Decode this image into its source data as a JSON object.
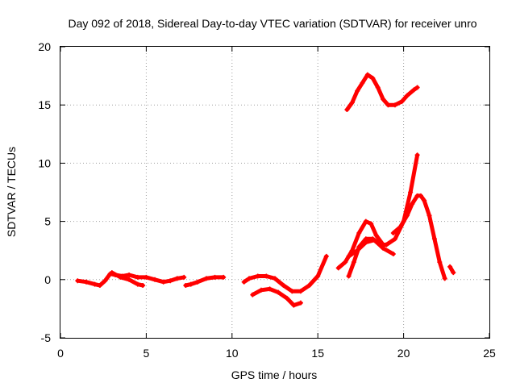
{
  "chart_data": {
    "type": "scatter",
    "title": "Day 092 of 2018, Sidereal Day-to-day VTEC variation (SDTVAR) for receiver unro",
    "xlabel": "GPS time / hours",
    "ylabel": "SDTVAR / TECUs",
    "xlim": [
      0,
      25
    ],
    "ylim": [
      -5,
      20
    ],
    "x_ticks": [
      0,
      5,
      10,
      15,
      20,
      25
    ],
    "y_ticks": [
      -5,
      0,
      5,
      10,
      15,
      20
    ],
    "grid": true,
    "color": "#ff0000",
    "series": [
      {
        "segments": [
          [
            [
              1.0,
              -0.1
            ],
            [
              1.5,
              -0.2
            ],
            [
              2.0,
              -0.4
            ],
            [
              2.3,
              -0.5
            ],
            [
              2.6,
              -0.1
            ],
            [
              2.9,
              0.5
            ],
            [
              3.2,
              0.4
            ],
            [
              3.6,
              0.3
            ],
            [
              4.0,
              0.4
            ],
            [
              4.5,
              0.2
            ],
            [
              5.0,
              0.2
            ],
            [
              5.5,
              0.0
            ],
            [
              6.0,
              -0.2
            ],
            [
              6.4,
              -0.1
            ],
            [
              6.8,
              0.1
            ],
            [
              7.2,
              0.2
            ]
          ],
          [
            [
              3.0,
              0.6
            ],
            [
              3.5,
              0.2
            ],
            [
              4.0,
              0.0
            ],
            [
              4.5,
              -0.4
            ],
            [
              4.8,
              -0.5
            ]
          ],
          [
            [
              7.3,
              -0.5
            ],
            [
              7.6,
              -0.4
            ],
            [
              8.0,
              -0.2
            ],
            [
              8.5,
              0.1
            ],
            [
              9.0,
              0.2
            ],
            [
              9.5,
              0.2
            ]
          ],
          [
            [
              10.7,
              -0.2
            ],
            [
              11.0,
              0.1
            ],
            [
              11.5,
              0.3
            ],
            [
              12.0,
              0.3
            ],
            [
              12.5,
              0.1
            ],
            [
              13.0,
              -0.5
            ],
            [
              13.5,
              -1.0
            ],
            [
              14.0,
              -1.0
            ],
            [
              14.5,
              -0.5
            ],
            [
              15.0,
              0.3
            ],
            [
              15.5,
              2.0
            ]
          ],
          [
            [
              11.2,
              -1.3
            ],
            [
              11.7,
              -0.9
            ],
            [
              12.2,
              -0.8
            ],
            [
              12.7,
              -1.1
            ],
            [
              13.2,
              -1.6
            ],
            [
              13.6,
              -2.2
            ],
            [
              14.0,
              -2.0
            ]
          ],
          [
            [
              16.2,
              1.0
            ],
            [
              16.6,
              1.5
            ],
            [
              17.0,
              2.5
            ],
            [
              17.4,
              4.0
            ],
            [
              17.8,
              5.0
            ],
            [
              18.1,
              4.8
            ],
            [
              18.4,
              3.8
            ],
            [
              18.8,
              3.0
            ]
          ],
          [
            [
              16.8,
              0.3
            ],
            [
              17.1,
              1.5
            ],
            [
              17.4,
              2.8
            ],
            [
              17.8,
              3.5
            ],
            [
              18.2,
              3.5
            ],
            [
              18.6,
              3.0
            ],
            [
              19.0,
              3.0
            ],
            [
              19.5,
              3.5
            ],
            [
              20.0,
              5.0
            ],
            [
              20.4,
              7.5
            ],
            [
              20.8,
              10.7
            ]
          ],
          [
            [
              16.8,
              2.0
            ],
            [
              17.3,
              2.5
            ],
            [
              17.8,
              3.2
            ],
            [
              18.3,
              3.4
            ],
            [
              18.8,
              2.7
            ],
            [
              19.4,
              2.2
            ]
          ],
          [
            [
              16.7,
              14.6
            ],
            [
              17.0,
              15.2
            ],
            [
              17.3,
              16.2
            ],
            [
              17.6,
              16.9
            ],
            [
              17.9,
              17.6
            ],
            [
              18.2,
              17.3
            ],
            [
              18.5,
              16.5
            ],
            [
              18.8,
              15.5
            ],
            [
              19.1,
              15.0
            ],
            [
              19.5,
              15.0
            ],
            [
              19.9,
              15.3
            ],
            [
              20.2,
              15.8
            ],
            [
              20.6,
              16.3
            ],
            [
              20.8,
              16.5
            ]
          ],
          [
            [
              19.4,
              4.0
            ],
            [
              19.8,
              4.5
            ],
            [
              20.2,
              5.5
            ],
            [
              20.5,
              6.5
            ],
            [
              20.8,
              7.2
            ],
            [
              21.0,
              7.2
            ],
            [
              21.2,
              6.8
            ],
            [
              21.5,
              5.5
            ],
            [
              21.8,
              3.5
            ],
            [
              22.1,
              1.5
            ],
            [
              22.4,
              0.1
            ]
          ],
          [
            [
              22.7,
              1.1
            ],
            [
              22.9,
              0.6
            ]
          ]
        ]
      }
    ]
  }
}
